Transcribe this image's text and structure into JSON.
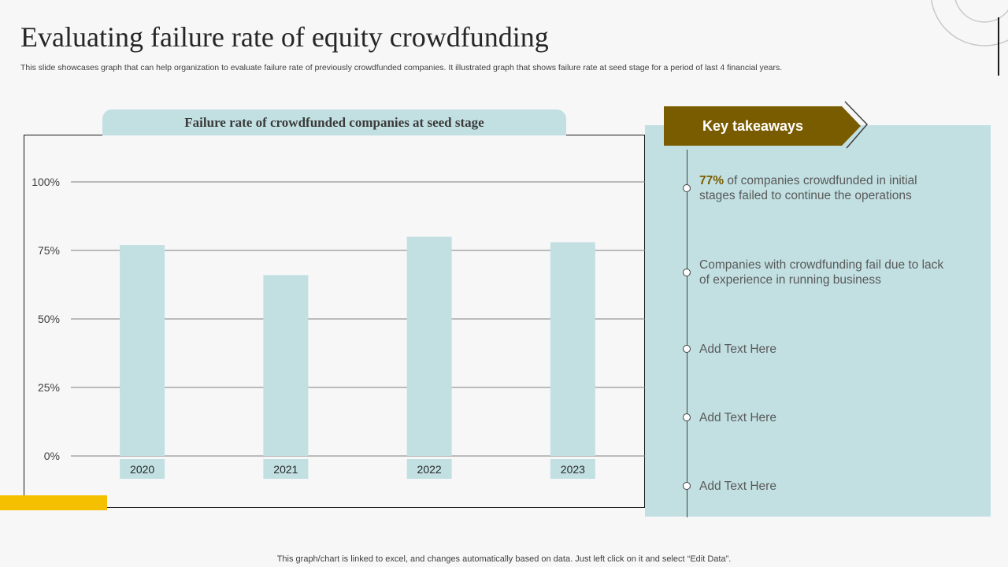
{
  "title": "Evaluating failure rate of equity crowdfunding",
  "subtitle": "This slide showcases graph that can help organization to evaluate failure rate of previously crowdfunded companies. It illustrated graph that shows failure rate at seed stage for a period of last 4 financial years.",
  "footer": "This graph/chart is linked to excel,  and changes automatically based on data. Just left click on it and select “Edit Data”.",
  "colors": {
    "bar": "#c2e0e2",
    "panel": "#c2e0e2",
    "tab": "#7a5c00",
    "accent": "#f5c000",
    "grid": "#7f7f7f"
  },
  "chart_data": {
    "type": "bar",
    "title": "Failure rate of crowdfunded companies at seed stage",
    "categories": [
      "2020",
      "2021",
      "2022",
      "2023"
    ],
    "values": [
      77,
      66,
      80,
      78
    ],
    "yticks": [
      "0%",
      "25%",
      "50%",
      "75%",
      "100%"
    ],
    "ytick_values": [
      0,
      25,
      50,
      75,
      100
    ],
    "ylim": [
      0,
      100
    ],
    "xlabel": "",
    "ylabel": "",
    "grid": true
  },
  "takeaways": {
    "header": "Key takeaways",
    "items": [
      {
        "highlight": "77%",
        "text": " of companies crowdfunded in initial stages  failed to continue the operations"
      },
      {
        "highlight": "",
        "text": "Companies with crowdfunding fail due to lack of experience in running business"
      },
      {
        "highlight": "",
        "text": "Add Text Here"
      },
      {
        "highlight": "",
        "text": "Add Text Here"
      },
      {
        "highlight": "",
        "text": "Add Text Here"
      }
    ]
  }
}
